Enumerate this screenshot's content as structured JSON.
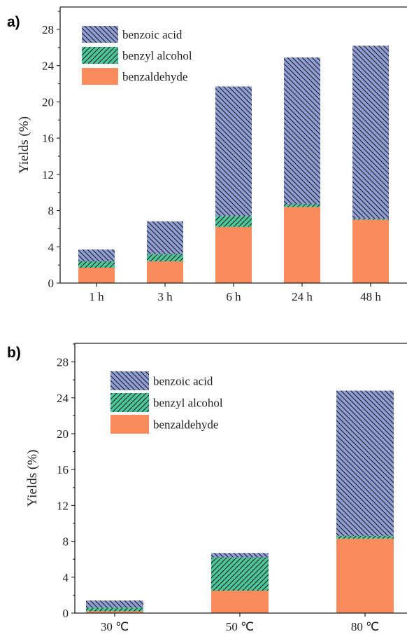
{
  "colors": {
    "benzoic_acid": "#8f9fd6",
    "benzyl_alcohol": "#4cc79a",
    "benzaldehyde": "#f98b5c",
    "hatch": "#1a1a1a",
    "axis": "#222222"
  },
  "chart_data": [
    {
      "panel_label": "a)",
      "type": "bar",
      "stacked": true,
      "categories": [
        "1 h",
        "3 h",
        "6 h",
        "24 h",
        "48 h"
      ],
      "series": [
        {
          "name": "benzaldehyde",
          "values": [
            1.7,
            2.4,
            6.2,
            8.4,
            7.0
          ]
        },
        {
          "name": "benzyl alcohol",
          "values": [
            0.7,
            0.8,
            1.2,
            0.3,
            0.1
          ]
        },
        {
          "name": "benzoic acid",
          "values": [
            1.3,
            3.6,
            14.3,
            16.2,
            19.1
          ]
        }
      ],
      "ylabel": "Yields (%)",
      "ylim": [
        0,
        30
      ],
      "yticks": [
        0,
        4,
        8,
        12,
        16,
        20,
        24,
        28
      ],
      "legend_order": [
        "benzoic acid",
        "benzyl alcohol",
        "benzaldehyde"
      ],
      "legend_position": "top-left",
      "grid": false
    },
    {
      "panel_label": "b)",
      "type": "bar",
      "stacked": true,
      "categories": [
        "30 ℃",
        "50 ℃",
        "80 ℃"
      ],
      "series": [
        {
          "name": "benzaldehyde",
          "values": [
            0.2,
            2.5,
            8.3
          ]
        },
        {
          "name": "benzyl alcohol",
          "values": [
            0.4,
            3.7,
            0.3
          ]
        },
        {
          "name": "benzoic acid",
          "values": [
            0.8,
            0.5,
            16.2
          ]
        }
      ],
      "ylabel": "Yields (%)",
      "ylim": [
        0,
        30
      ],
      "yticks": [
        0,
        4,
        8,
        12,
        16,
        20,
        24,
        28
      ],
      "legend_order": [
        "benzoic acid",
        "benzyl alcohol",
        "benzaldehyde"
      ],
      "legend_position": "top-left",
      "grid": false
    }
  ]
}
